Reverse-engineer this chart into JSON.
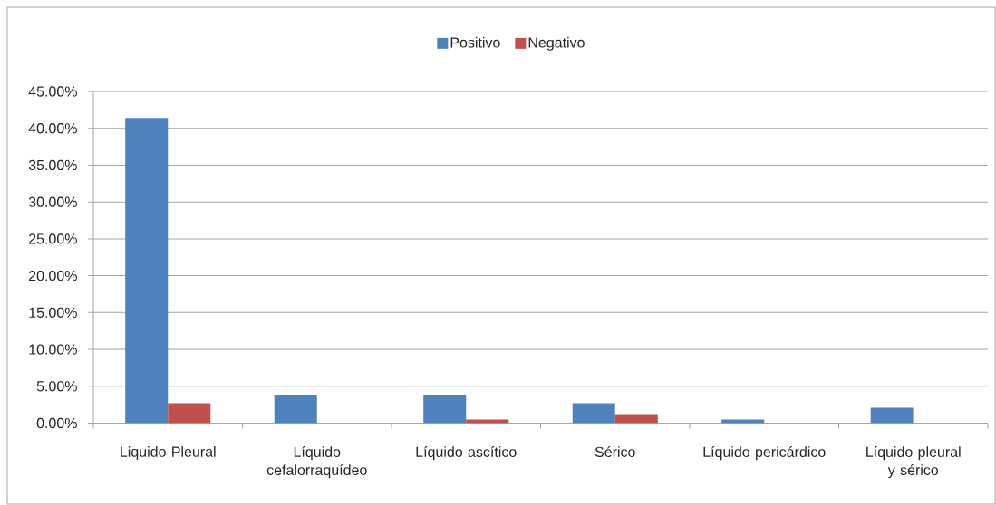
{
  "chart_data": {
    "type": "bar",
    "categories": [
      "Liquido Pleural",
      "Líquido cefalorraquídeo",
      "Líquido ascítico",
      "Sérico",
      "Líquido pericárdico",
      "Líquido pleural y sérico"
    ],
    "series": [
      {
        "name": "Positivo",
        "color": "#4f81bd",
        "values": [
          41.4,
          3.8,
          3.8,
          2.7,
          0.5,
          2.1
        ]
      },
      {
        "name": "Negativo",
        "color": "#c0504d",
        "values": [
          2.7,
          0,
          0.5,
          1.1,
          0,
          0
        ]
      }
    ],
    "ylim": [
      0,
      45
    ],
    "yticks": [
      {
        "value": 0,
        "label": "0.00%"
      },
      {
        "value": 5,
        "label": "5.00%"
      },
      {
        "value": 10,
        "label": "10.00%"
      },
      {
        "value": 15,
        "label": "15.00%"
      },
      {
        "value": 20,
        "label": "20.00%"
      },
      {
        "value": 25,
        "label": "25.00%"
      },
      {
        "value": 30,
        "label": "30.00%"
      },
      {
        "value": 35,
        "label": "35.00%"
      },
      {
        "value": 40,
        "label": "40.00%"
      },
      {
        "value": 45,
        "label": "45.00%"
      }
    ],
    "grid": "y",
    "legend": "top"
  }
}
